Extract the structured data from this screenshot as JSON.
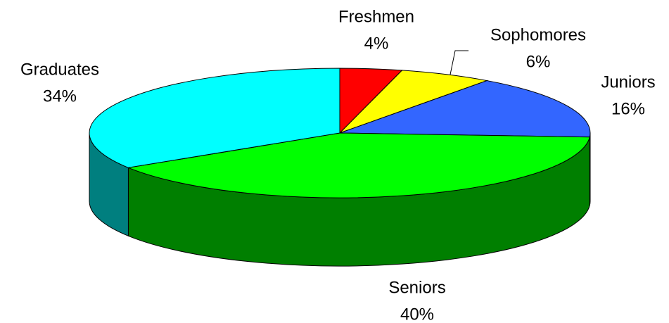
{
  "chart_data": {
    "type": "pie3d",
    "categories": [
      "Freshmen",
      "Sophomores",
      "Juniors",
      "Seniors",
      "Graduates"
    ],
    "values": [
      4,
      6,
      16,
      40,
      34
    ],
    "value_labels": [
      "4%",
      "6%",
      "16%",
      "40%",
      "34%"
    ],
    "colors": [
      "#ff0000",
      "#ffff00",
      "#3366ff",
      "#00ff00",
      "#00ffff"
    ]
  }
}
